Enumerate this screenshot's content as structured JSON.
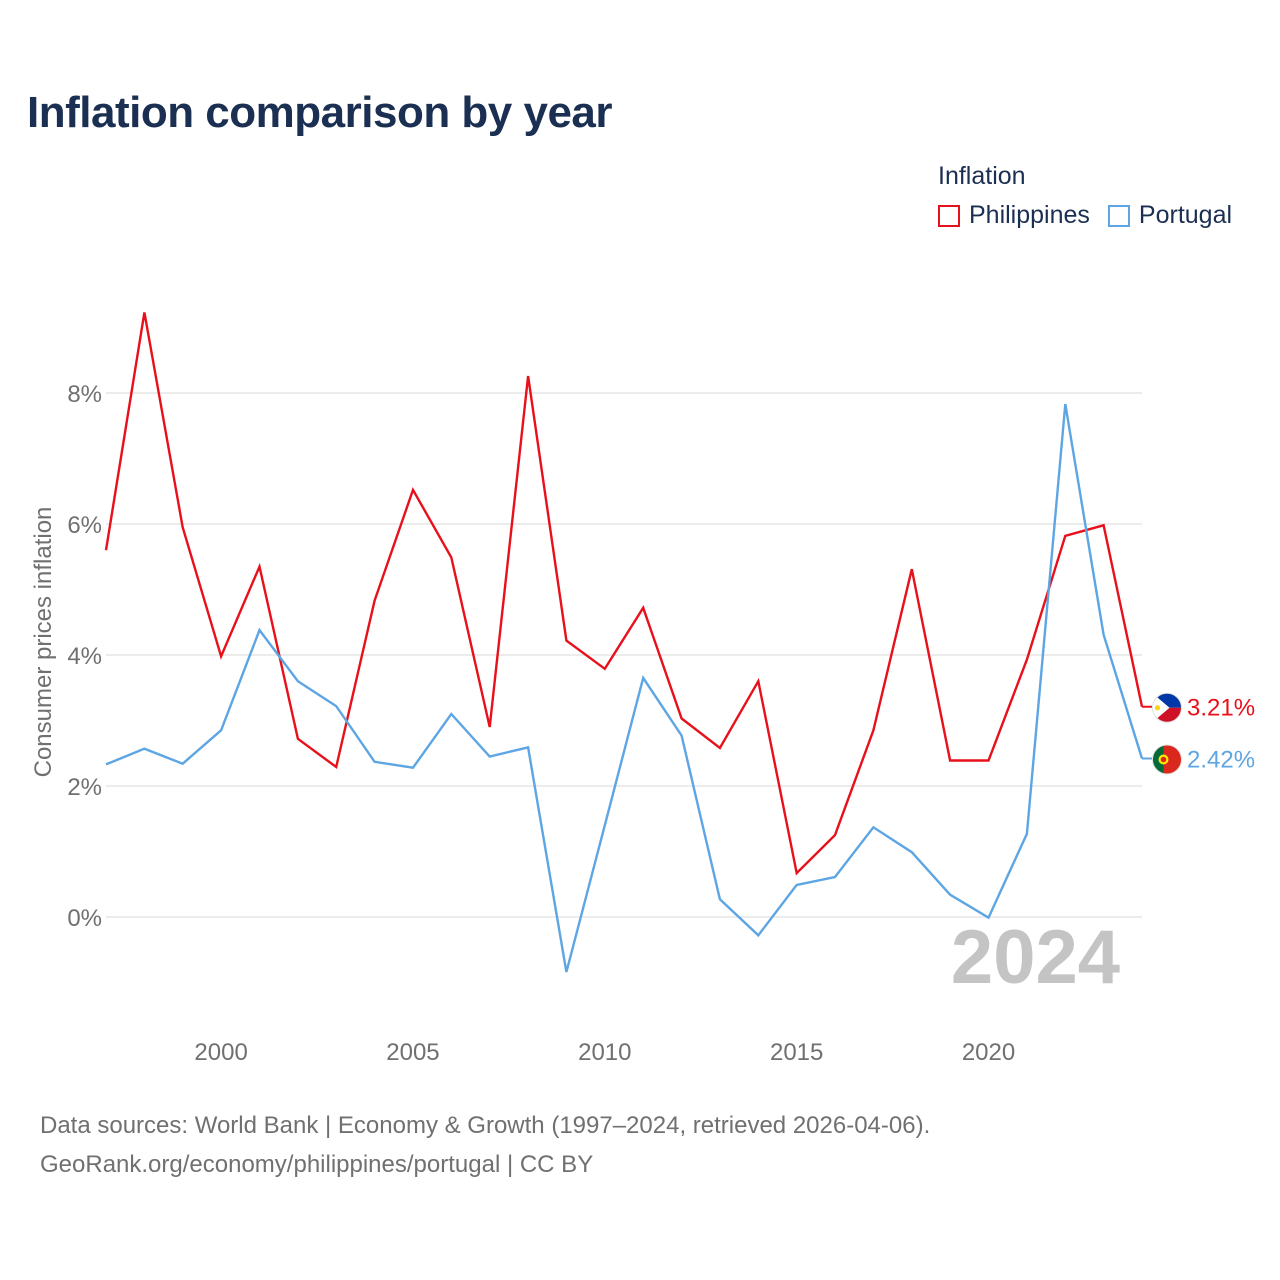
{
  "title": "Inflation comparison by year",
  "legend": {
    "title": "Inflation",
    "items": [
      {
        "label": "Philippines",
        "color": "#e8101a"
      },
      {
        "label": "Portugal",
        "color": "#5da5e3"
      }
    ]
  },
  "footer": {
    "line1": "Data sources: World Bank | Economy & Growth (1997–2024, retrieved 2026-04-06).",
    "line2": "GeoRank.org/economy/philippines/portugal | CC BY"
  },
  "chart_data": {
    "type": "line",
    "title": "Inflation comparison by year",
    "ylabel": "Consumer prices inflation",
    "xlabel": "",
    "year_label": "2024",
    "xlim": [
      1997,
      2024
    ],
    "ylim": [
      -1.5,
      9.5
    ],
    "x_ticks": [
      2000,
      2005,
      2010,
      2015,
      2020
    ],
    "x_tick_labels": [
      "2000",
      "2005",
      "2010",
      "2015",
      "2020"
    ],
    "y_ticks": [
      0,
      2,
      4,
      6,
      8
    ],
    "y_tick_labels": [
      "0%",
      "2%",
      "4%",
      "6%",
      "8%"
    ],
    "grid": true,
    "legend_position": "top-right",
    "x": [
      1997,
      1998,
      1999,
      2000,
      2001,
      2002,
      2003,
      2004,
      2005,
      2006,
      2007,
      2008,
      2009,
      2010,
      2011,
      2012,
      2013,
      2014,
      2015,
      2016,
      2017,
      2018,
      2019,
      2020,
      2021,
      2022,
      2023,
      2024
    ],
    "series": [
      {
        "name": "Philippines",
        "color": "#e8101a",
        "end_label": "3.21%",
        "flag": "philippines-flag",
        "values": [
          5.6,
          9.23,
          5.95,
          3.98,
          5.35,
          2.72,
          2.29,
          4.83,
          6.52,
          5.49,
          2.9,
          8.26,
          4.22,
          3.79,
          4.72,
          3.03,
          2.58,
          3.6,
          0.67,
          1.25,
          2.85,
          5.31,
          2.39,
          2.39,
          3.93,
          5.82,
          5.98,
          3.21
        ]
      },
      {
        "name": "Portugal",
        "color": "#5da5e3",
        "end_label": "2.42%",
        "flag": "portugal-flag",
        "values": [
          2.33,
          2.57,
          2.34,
          2.85,
          4.38,
          3.6,
          3.22,
          2.37,
          2.28,
          3.1,
          2.45,
          2.59,
          -0.84,
          1.4,
          3.65,
          2.77,
          0.27,
          -0.28,
          0.49,
          0.61,
          1.37,
          0.99,
          0.34,
          -0.01,
          1.27,
          7.83,
          4.31,
          2.42
        ]
      }
    ]
  }
}
